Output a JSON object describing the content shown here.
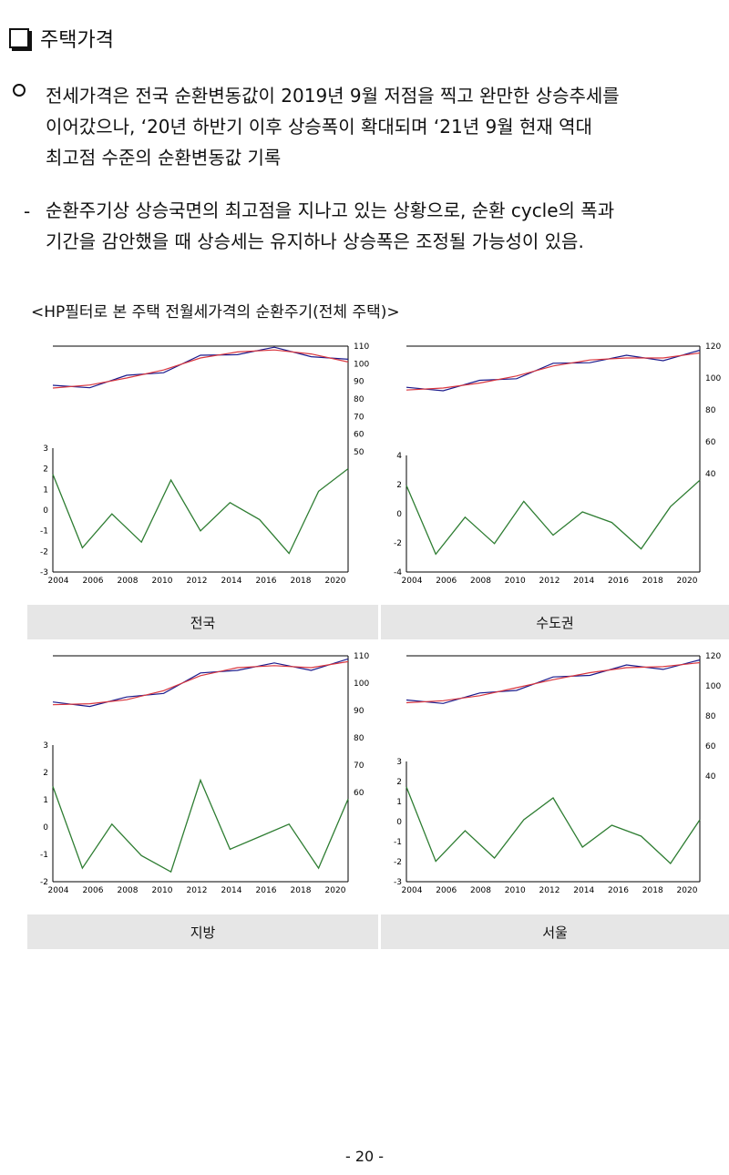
{
  "section": {
    "title": "주택가격"
  },
  "para1": [
    "전세가격은 전국 순환변동값이 2019년 9월 저점을 찍고 완만한 상승추세를",
    "이어갔으나, ‘20년 하반기 이후 상승폭이 확대되며 ‘21년 9월 현재 역대",
    "최고점 수준의 순환변동값 기록"
  ],
  "para2": [
    "순환주기상 상승국면의 최고점을 지나고 있는 상황으로, 순환 cycle의 폭과",
    "기간을 감안했을 때 상승세는 유지하나 상승폭은 조정될 가능성이 있음."
  ],
  "caption": "<HP필터로 본 주택 전월세가격의 순환주기(전체 주택)>",
  "charts": [
    {
      "label": "전국",
      "left_ticks": [
        "3",
        "2",
        "1",
        "0",
        "-1",
        "-2",
        "-3"
      ],
      "right_ticks": [
        "110",
        "100",
        "90",
        "80",
        "70",
        "60",
        "50"
      ],
      "x_ticks": [
        "2004",
        "2006",
        "2008",
        "2010",
        "2012",
        "2014",
        "2016",
        "2018",
        "2020"
      ]
    },
    {
      "label": "수도권",
      "left_ticks": [
        "4",
        "2",
        "0",
        "-2",
        "-4"
      ],
      "right_ticks": [
        "120",
        "100",
        "80",
        "60",
        "40"
      ],
      "x_ticks": [
        "2004",
        "2006",
        "2008",
        "2010",
        "2012",
        "2014",
        "2016",
        "2018",
        "2020"
      ]
    },
    {
      "label": "지방",
      "left_ticks": [
        "3",
        "2",
        "1",
        "0",
        "-1",
        "-2"
      ],
      "right_ticks": [
        "110",
        "100",
        "90",
        "80",
        "70",
        "60"
      ],
      "x_ticks": [
        "2004",
        "2006",
        "2008",
        "2010",
        "2012",
        "2014",
        "2016",
        "2018",
        "2020"
      ]
    },
    {
      "label": "서울",
      "left_ticks": [
        "3",
        "2",
        "1",
        "0",
        "-1",
        "-2",
        "-3"
      ],
      "right_ticks": [
        "120",
        "100",
        "80",
        "60",
        "40"
      ],
      "x_ticks": [
        "2004",
        "2006",
        "2008",
        "2010",
        "2012",
        "2014",
        "2016",
        "2018",
        "2020"
      ]
    }
  ],
  "colors": {
    "actual": "#1a1a8c",
    "trend": "#d9363e",
    "cycle": "#2e7d32"
  },
  "page_number": "- 20 -"
}
